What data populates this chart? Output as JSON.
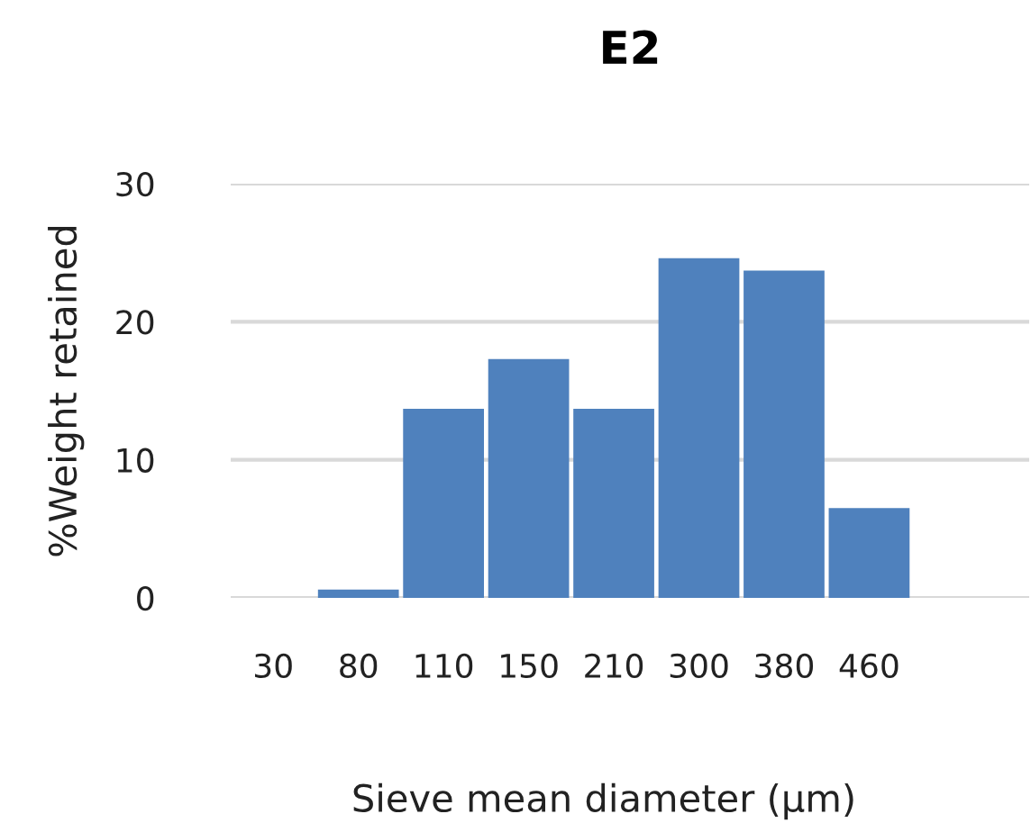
{
  "chart_data": {
    "type": "bar",
    "title": "E2",
    "xlabel": "Sieve mean diameter (µm)",
    "ylabel": "%Weight retained",
    "categories": [
      "30",
      "80",
      "110",
      "150",
      "210",
      "300",
      "380",
      "460"
    ],
    "values": [
      0,
      0.6,
      13.7,
      17.3,
      13.7,
      24.6,
      23.7,
      6.5
    ],
    "color": "#4f81bd",
    "ylim": [
      0,
      30
    ],
    "yticks": [
      0,
      10,
      20,
      30
    ],
    "grid": "y",
    "legend": false
  }
}
